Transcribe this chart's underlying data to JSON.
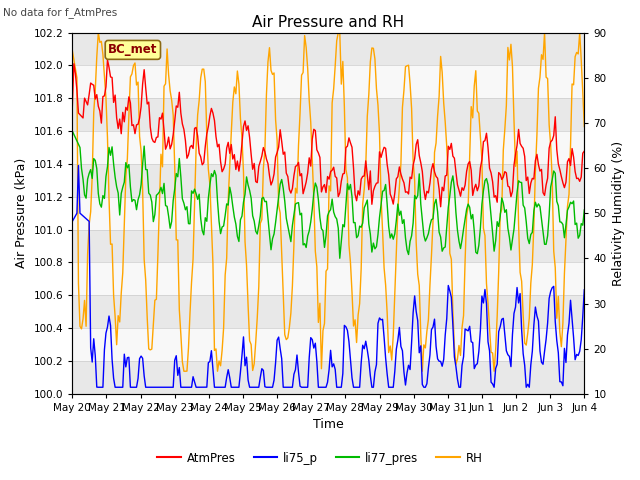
{
  "title": "Air Pressure and RH",
  "top_left_text": "No data for f_AtmPres",
  "annotation_box": "BC_met",
  "xlabel": "Time",
  "ylabel_left": "Air Pressure (kPa)",
  "ylabel_right": "Relativity Humidity (%)",
  "ylim_left": [
    100.0,
    102.2
  ],
  "ylim_right": [
    10,
    90
  ],
  "yticks_left": [
    100.0,
    100.2,
    100.4,
    100.6,
    100.8,
    101.0,
    101.2,
    101.4,
    101.6,
    101.8,
    102.0,
    102.2
  ],
  "yticks_right": [
    10,
    20,
    30,
    40,
    50,
    60,
    70,
    80,
    90
  ],
  "n_points": 336,
  "colors": {
    "AtmPres": "#FF0000",
    "li75_p": "#0000FF",
    "li77_pres": "#00BB00",
    "RH": "#FFA500"
  },
  "legend_labels": [
    "AtmPres",
    "li75_p",
    "li77_pres",
    "RH"
  ],
  "bg_band_colors": [
    "#E8E8E8",
    "#F8F8F8"
  ],
  "grid_line_color": "#CCCCCC",
  "x_tick_labels": [
    "May 20",
    "May 21",
    "May 22",
    "May 23",
    "May 24",
    "May 25",
    "May 26",
    "May 27",
    "May 28",
    "May 29",
    "May 30",
    "May 31",
    "Jun 1",
    "Jun 2",
    "Jun 3",
    "Jun 4"
  ],
  "title_fontsize": 11,
  "axis_fontsize": 9,
  "tick_fontsize": 7.5,
  "legend_fontsize": 8.5,
  "linewidth": 1.0
}
